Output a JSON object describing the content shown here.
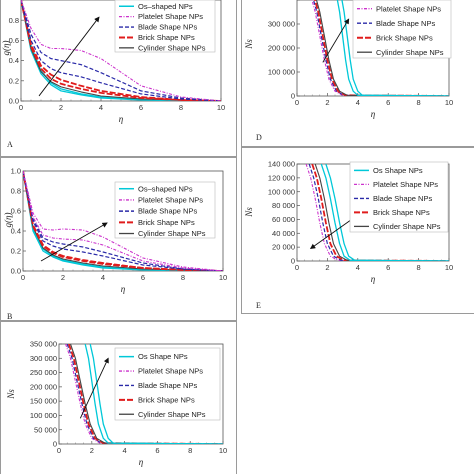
{
  "colors": {
    "os": "#00c8d8",
    "platelet": "#cc33cc",
    "blade": "#2a2aa8",
    "brick": "#e01c1c",
    "cylinder": "#444444",
    "frame": "#9a9a9a"
  },
  "chart_data": [
    {
      "type": "line",
      "panel_label": "A",
      "xlabel": "η",
      "ylabel": "g(η)",
      "xlim": [
        0,
        10
      ],
      "ylim": [
        0,
        1
      ],
      "xticks": [
        "0",
        "2",
        "4",
        "6",
        "8",
        "10"
      ],
      "yticks": [
        "0.0",
        "0.2",
        "0.4",
        "0.6",
        "0.8",
        "1.0"
      ],
      "grid": false,
      "legend_position": "top-right",
      "legend": [
        "Os–shaped NPs",
        "Platelet Shape NPs",
        "Blade Shape NPs",
        "Brick Shape NPs",
        "Cylinder Shape NPs"
      ],
      "arrow": {
        "from": [
          0.9,
          0.05
        ],
        "to": [
          3.9,
          0.83
        ]
      },
      "series": [
        {
          "style": "os",
          "x": [
            0,
            0.5,
            1,
            1.5,
            2,
            3,
            4,
            6,
            8,
            10
          ],
          "y": [
            1,
            0.55,
            0.3,
            0.18,
            0.12,
            0.07,
            0.04,
            0.02,
            0.01,
            0
          ]
        },
        {
          "style": "os",
          "x": [
            0,
            0.5,
            1,
            1.5,
            2,
            3,
            4,
            6,
            8,
            10
          ],
          "y": [
            1,
            0.5,
            0.27,
            0.16,
            0.1,
            0.06,
            0.03,
            0.01,
            0.005,
            0
          ]
        },
        {
          "style": "cylinder",
          "x": [
            0,
            0.5,
            1,
            1.5,
            2,
            3,
            4,
            6,
            8,
            10
          ],
          "y": [
            1,
            0.52,
            0.29,
            0.19,
            0.14,
            0.09,
            0.05,
            0.02,
            0.01,
            0
          ]
        },
        {
          "style": "brick",
          "x": [
            0,
            0.5,
            1,
            1.5,
            2,
            3,
            4,
            6,
            8,
            10
          ],
          "y": [
            1,
            0.54,
            0.32,
            0.22,
            0.17,
            0.12,
            0.08,
            0.03,
            0.01,
            0
          ]
        },
        {
          "style": "brick",
          "x": [
            0,
            0.5,
            1,
            1.5,
            2,
            3,
            4,
            6,
            8,
            10
          ],
          "y": [
            1,
            0.56,
            0.35,
            0.26,
            0.21,
            0.15,
            0.1,
            0.04,
            0.01,
            0
          ]
        },
        {
          "style": "blade",
          "x": [
            0,
            0.5,
            1,
            1.5,
            2,
            3,
            4,
            6,
            8,
            10
          ],
          "y": [
            1,
            0.6,
            0.4,
            0.32,
            0.28,
            0.24,
            0.18,
            0.07,
            0.02,
            0
          ]
        },
        {
          "style": "blade",
          "x": [
            0,
            0.5,
            1,
            1.5,
            2,
            3,
            4,
            6,
            8,
            10
          ],
          "y": [
            1,
            0.66,
            0.48,
            0.42,
            0.4,
            0.36,
            0.28,
            0.1,
            0.03,
            0
          ]
        },
        {
          "style": "platelet",
          "x": [
            0,
            0.5,
            1,
            1.5,
            2,
            3,
            4,
            6,
            8,
            10
          ],
          "y": [
            1,
            0.72,
            0.56,
            0.52,
            0.52,
            0.5,
            0.42,
            0.15,
            0.04,
            0
          ]
        }
      ]
    },
    {
      "type": "line",
      "panel_label": "B",
      "xlabel": "η",
      "ylabel": "g(η)",
      "xlim": [
        0,
        10
      ],
      "ylim": [
        0,
        1
      ],
      "xticks": [
        "0",
        "2",
        "4",
        "6",
        "8",
        "10"
      ],
      "yticks": [
        "0.0",
        "0.2",
        "0.4",
        "0.6",
        "0.8",
        "1.0"
      ],
      "grid": false,
      "legend_position": "top-right",
      "legend": [
        "Os–shaped NPs",
        "Platelet Shape NPs",
        "Blade Shape NPs",
        "Brick Shape NPs",
        "Cylinder Shape NPs"
      ],
      "arrow": {
        "from": [
          0.9,
          0.1
        ],
        "to": [
          4.2,
          0.48
        ]
      },
      "series": [
        {
          "style": "os",
          "x": [
            0,
            0.5,
            1,
            1.5,
            2,
            3,
            4,
            6,
            8,
            10
          ],
          "y": [
            1,
            0.42,
            0.22,
            0.15,
            0.11,
            0.07,
            0.04,
            0.02,
            0.01,
            0
          ]
        },
        {
          "style": "os",
          "x": [
            0,
            0.5,
            1,
            1.5,
            2,
            3,
            4,
            6,
            8,
            10
          ],
          "y": [
            1,
            0.4,
            0.2,
            0.14,
            0.1,
            0.06,
            0.03,
            0.01,
            0.005,
            0
          ]
        },
        {
          "style": "cylinder",
          "x": [
            0,
            0.5,
            1,
            1.5,
            2,
            3,
            4,
            6,
            8,
            10
          ],
          "y": [
            1,
            0.44,
            0.23,
            0.16,
            0.12,
            0.08,
            0.05,
            0.02,
            0.01,
            0
          ]
        },
        {
          "style": "brick",
          "x": [
            0,
            0.5,
            1,
            1.5,
            2,
            3,
            4,
            6,
            8,
            10
          ],
          "y": [
            1,
            0.45,
            0.25,
            0.18,
            0.14,
            0.1,
            0.07,
            0.03,
            0.01,
            0
          ]
        },
        {
          "style": "brick",
          "x": [
            0,
            0.5,
            1,
            1.5,
            2,
            3,
            4,
            6,
            8,
            10
          ],
          "y": [
            1,
            0.46,
            0.26,
            0.19,
            0.15,
            0.11,
            0.08,
            0.03,
            0.01,
            0
          ]
        },
        {
          "style": "blade",
          "x": [
            0,
            0.5,
            1,
            1.5,
            2,
            3,
            4,
            6,
            8,
            10
          ],
          "y": [
            1,
            0.5,
            0.3,
            0.25,
            0.22,
            0.19,
            0.15,
            0.06,
            0.02,
            0
          ]
        },
        {
          "style": "blade",
          "x": [
            0,
            0.5,
            1,
            1.5,
            2,
            3,
            4,
            6,
            8,
            10
          ],
          "y": [
            1,
            0.52,
            0.33,
            0.29,
            0.27,
            0.24,
            0.19,
            0.08,
            0.02,
            0
          ]
        },
        {
          "style": "platelet",
          "x": [
            0,
            0.5,
            1,
            1.5,
            2,
            3,
            4,
            6,
            8,
            10
          ],
          "y": [
            1,
            0.54,
            0.36,
            0.33,
            0.32,
            0.31,
            0.26,
            0.1,
            0.03,
            0
          ]
        },
        {
          "style": "platelet",
          "x": [
            0,
            0.5,
            1,
            1.5,
            2,
            3,
            4,
            6,
            8,
            10
          ],
          "y": [
            1,
            0.58,
            0.42,
            0.41,
            0.42,
            0.41,
            0.34,
            0.13,
            0.04,
            0
          ]
        }
      ]
    },
    {
      "type": "line",
      "panel_label": "",
      "xlabel": "η",
      "ylabel": "Ns",
      "xlim": [
        0,
        10
      ],
      "ylim": [
        0,
        350000
      ],
      "xticks": [
        "0",
        "2",
        "4",
        "6",
        "8",
        "10"
      ],
      "yticks": [
        "0",
        "50 000",
        "100 000",
        "150 000",
        "200 000",
        "250 000",
        "300 000",
        "350 000"
      ],
      "grid": false,
      "legend_position": "top-right",
      "legend": [
        "Os Shape NPs",
        "Platelet Shape NPs",
        "Blade Shape NPs",
        "Brick Shape NPs",
        "Cylinder Shape NPs"
      ],
      "arrow": {
        "from": [
          1.3,
          90000
        ],
        "to": [
          3.0,
          300000
        ]
      },
      "series": [
        {
          "style": "platelet",
          "x": [
            0.4,
            0.7,
            1,
            1.3,
            1.6,
            2,
            2.5,
            10
          ],
          "y": [
            350000,
            300000,
            220000,
            140000,
            70000,
            20000,
            3000,
            0
          ]
        },
        {
          "style": "blade",
          "x": [
            0.5,
            0.8,
            1.1,
            1.4,
            1.7,
            2.1,
            2.6,
            10
          ],
          "y": [
            350000,
            300000,
            220000,
            140000,
            70000,
            20000,
            3000,
            0
          ]
        },
        {
          "style": "brick",
          "x": [
            0.6,
            0.9,
            1.2,
            1.5,
            1.8,
            2.2,
            2.7,
            10
          ],
          "y": [
            350000,
            300000,
            220000,
            140000,
            70000,
            20000,
            3000,
            0
          ]
        },
        {
          "style": "cylinder",
          "x": [
            0.7,
            1,
            1.3,
            1.6,
            1.9,
            2.3,
            2.8,
            10
          ],
          "y": [
            350000,
            300000,
            220000,
            140000,
            70000,
            20000,
            3000,
            0
          ]
        },
        {
          "style": "os",
          "x": [
            1.6,
            1.8,
            2,
            2.2,
            2.4,
            2.7,
            3,
            10
          ],
          "y": [
            350000,
            300000,
            220000,
            140000,
            70000,
            20000,
            3000,
            0
          ]
        },
        {
          "style": "os",
          "x": [
            1.9,
            2.1,
            2.3,
            2.5,
            2.7,
            3,
            3.3,
            10
          ],
          "y": [
            350000,
            300000,
            220000,
            140000,
            70000,
            20000,
            3000,
            0
          ]
        }
      ]
    },
    {
      "type": "line",
      "panel_label": "D",
      "xlabel": "η",
      "ylabel": "Ns",
      "xlim": [
        0,
        10
      ],
      "ylim": [
        0,
        400000
      ],
      "xticks": [
        "0",
        "2",
        "4",
        "6",
        "8",
        "10"
      ],
      "yticks": [
        "0",
        "100 000",
        "200 000",
        "300 000",
        "400 000"
      ],
      "grid": false,
      "legend_position": "top-right",
      "legend": [
        "Platelet Shape NPs",
        "Blade Shape NPs",
        "Brick Shape NPs",
        "Cylinder Shape NPs"
      ],
      "arrow": {
        "from": [
          1.7,
          140000
        ],
        "to": [
          3.4,
          320000
        ]
      },
      "series": [
        {
          "style": "platelet",
          "x": [
            0.9,
            1.2,
            1.5,
            1.8,
            2.1,
            2.5,
            3,
            10
          ],
          "y": [
            420000,
            350000,
            250000,
            150000,
            70000,
            20000,
            3000,
            0
          ]
        },
        {
          "style": "blade",
          "x": [
            1,
            1.3,
            1.6,
            1.9,
            2.2,
            2.6,
            3.1,
            10
          ],
          "y": [
            420000,
            350000,
            250000,
            150000,
            70000,
            20000,
            3000,
            0
          ]
        },
        {
          "style": "brick",
          "x": [
            1.1,
            1.4,
            1.7,
            2,
            2.3,
            2.7,
            3.2,
            10
          ],
          "y": [
            420000,
            350000,
            250000,
            150000,
            70000,
            20000,
            3000,
            0
          ]
        },
        {
          "style": "cylinder",
          "x": [
            1.2,
            1.5,
            1.8,
            2.1,
            2.4,
            2.8,
            3.3,
            10
          ],
          "y": [
            420000,
            350000,
            250000,
            150000,
            70000,
            20000,
            3000,
            0
          ]
        },
        {
          "style": "os",
          "x": [
            2.6,
            2.8,
            3,
            3.2,
            3.4,
            3.7,
            4,
            10
          ],
          "y": [
            420000,
            350000,
            250000,
            150000,
            70000,
            20000,
            3000,
            0
          ]
        },
        {
          "style": "os",
          "x": [
            2.9,
            3.1,
            3.3,
            3.5,
            3.7,
            4,
            4.3,
            10
          ],
          "y": [
            420000,
            350000,
            250000,
            150000,
            70000,
            20000,
            3000,
            0
          ]
        }
      ]
    },
    {
      "type": "line",
      "panel_label": "E",
      "xlabel": "η",
      "ylabel": "Ns",
      "xlim": [
        0,
        10
      ],
      "ylim": [
        0,
        140000
      ],
      "xticks": [
        "0",
        "2",
        "4",
        "6",
        "8",
        "10"
      ],
      "yticks": [
        "0",
        "20 000",
        "40 000",
        "60 000",
        "80 000",
        "100 000",
        "120 000",
        "140 000"
      ],
      "grid": false,
      "legend_position": "top-right",
      "legend": [
        "Os Shape NPs",
        "Platelet Shape NPs",
        "Blade Shape NPs",
        "Brick Shape NPs",
        "Cylinder Shape NPs"
      ],
      "arrow": {
        "from": [
          3.6,
          60000
        ],
        "to": [
          0.9,
          18000
        ]
      },
      "series": [
        {
          "style": "platelet",
          "x": [
            0.6,
            0.9,
            1.2,
            1.5,
            1.8,
            2.2,
            2.7,
            10
          ],
          "y": [
            140000,
            120000,
            90000,
            55000,
            25000,
            7000,
            1000,
            0
          ]
        },
        {
          "style": "blade",
          "x": [
            0.8,
            1.1,
            1.4,
            1.7,
            2,
            2.4,
            2.9,
            10
          ],
          "y": [
            140000,
            120000,
            90000,
            55000,
            25000,
            7000,
            1000,
            0
          ]
        },
        {
          "style": "brick",
          "x": [
            1,
            1.3,
            1.6,
            1.9,
            2.2,
            2.6,
            3.1,
            10
          ],
          "y": [
            140000,
            120000,
            90000,
            55000,
            25000,
            7000,
            1000,
            0
          ]
        },
        {
          "style": "cylinder",
          "x": [
            1.2,
            1.5,
            1.8,
            2.1,
            2.4,
            2.8,
            3.3,
            10
          ],
          "y": [
            140000,
            120000,
            90000,
            55000,
            25000,
            7000,
            1000,
            0
          ]
        },
        {
          "style": "os",
          "x": [
            1.6,
            1.9,
            2.2,
            2.5,
            2.8,
            3.1,
            3.5,
            10
          ],
          "y": [
            140000,
            120000,
            90000,
            55000,
            25000,
            7000,
            1000,
            0
          ]
        },
        {
          "style": "os",
          "x": [
            1.9,
            2.2,
            2.5,
            2.8,
            3.1,
            3.4,
            3.8,
            10
          ],
          "y": [
            140000,
            120000,
            90000,
            55000,
            25000,
            7000,
            1000,
            0
          ]
        }
      ]
    }
  ]
}
